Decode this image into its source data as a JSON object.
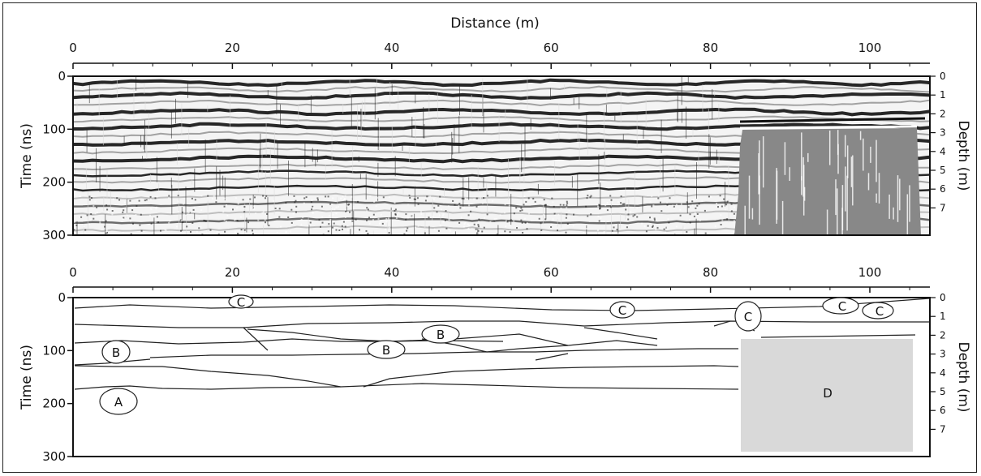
{
  "figure": {
    "top_panel": {
      "x_axis_label": "Distance (m)",
      "x_ticks": [
        "0",
        "20",
        "40",
        "60",
        "80",
        "100"
      ],
      "y_left_label": "Time (ns)",
      "y_left_ticks": [
        "0",
        "100",
        "200",
        "300"
      ],
      "y_right_label": "Depth (m)",
      "y_right_ticks": [
        "0",
        "1",
        "2",
        "3",
        "4",
        "5",
        "6",
        "7"
      ]
    },
    "bottom_panel": {
      "x_ticks": [
        "0",
        "20",
        "40",
        "60",
        "80",
        "100"
      ],
      "y_left_label": "Time (ns)",
      "y_left_ticks": [
        "0",
        "100",
        "200",
        "300"
      ],
      "y_right_label": "Depth (m)",
      "y_right_ticks": [
        "0",
        "1",
        "2",
        "3",
        "4",
        "5",
        "6",
        "7"
      ],
      "labels": {
        "A": "A",
        "B1": "B",
        "B2": "B",
        "B3": "B",
        "C1": "C",
        "C2": "C",
        "C3": "C",
        "C4": "C",
        "C5": "C",
        "D": "D"
      }
    },
    "colors": {
      "radar_gray": "#888888",
      "shade_D": "#d9d9d9",
      "line": "#222222"
    }
  }
}
